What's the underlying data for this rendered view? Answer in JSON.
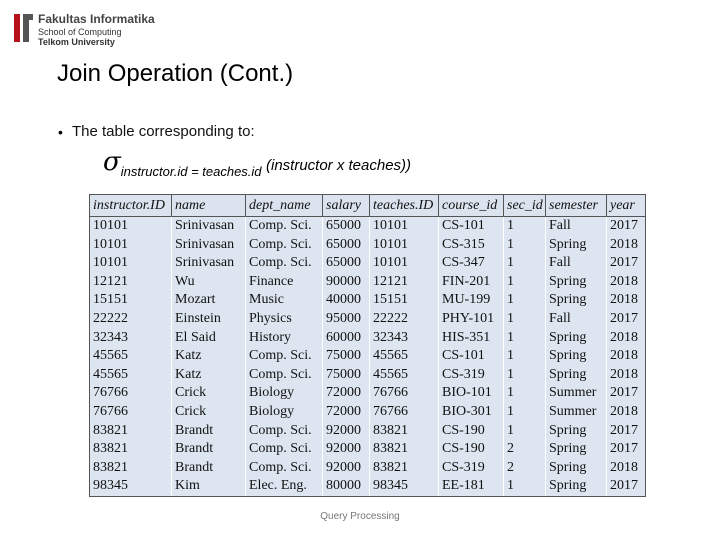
{
  "logo": {
    "name": "Fakultas Informatika",
    "line2": "School of Computing",
    "line3": "Telkom University"
  },
  "title": "Join Operation (Cont.)",
  "bullet": "The  table corresponding to:",
  "formula": {
    "sigma": "σ",
    "subscript": "instructor.id = teaches.id",
    "argument": "(instructor  x teaches))"
  },
  "table": {
    "header": [
      "instructor.ID",
      "name",
      "dept_name",
      "salary",
      "teaches.ID",
      "course_id",
      "sec_id",
      "semester",
      "year"
    ],
    "rows": [
      [
        "10101",
        "Srinivasan",
        "Comp. Sci.",
        "65000",
        "10101",
        "CS-101",
        "1",
        "Fall",
        "2017"
      ],
      [
        "10101",
        "Srinivasan",
        "Comp. Sci.",
        "65000",
        "10101",
        "CS-315",
        "1",
        "Spring",
        "2018"
      ],
      [
        "10101",
        "Srinivasan",
        "Comp. Sci.",
        "65000",
        "10101",
        "CS-347",
        "1",
        "Fall",
        "2017"
      ],
      [
        "12121",
        "Wu",
        "Finance",
        "90000",
        "12121",
        "FIN-201",
        "1",
        "Spring",
        "2018"
      ],
      [
        "15151",
        "Mozart",
        "Music",
        "40000",
        "15151",
        "MU-199",
        "1",
        "Spring",
        "2018"
      ],
      [
        "22222",
        "Einstein",
        "Physics",
        "95000",
        "22222",
        "PHY-101",
        "1",
        "Fall",
        "2017"
      ],
      [
        "32343",
        "El Said",
        "History",
        "60000",
        "32343",
        "HIS-351",
        "1",
        "Spring",
        "2018"
      ],
      [
        "45565",
        "Katz",
        "Comp. Sci.",
        "75000",
        "45565",
        "CS-101",
        "1",
        "Spring",
        "2018"
      ],
      [
        "45565",
        "Katz",
        "Comp. Sci.",
        "75000",
        "45565",
        "CS-319",
        "1",
        "Spring",
        "2018"
      ],
      [
        "76766",
        "Crick",
        "Biology",
        "72000",
        "76766",
        "BIO-101",
        "1",
        "Summer",
        "2017"
      ],
      [
        "76766",
        "Crick",
        "Biology",
        "72000",
        "76766",
        "BIO-301",
        "1",
        "Summer",
        "2018"
      ],
      [
        "83821",
        "Brandt",
        "Comp. Sci.",
        "92000",
        "83821",
        "CS-190",
        "1",
        "Spring",
        "2017"
      ],
      [
        "83821",
        "Brandt",
        "Comp. Sci.",
        "92000",
        "83821",
        "CS-190",
        "2",
        "Spring",
        "2017"
      ],
      [
        "83821",
        "Brandt",
        "Comp. Sci.",
        "92000",
        "83821",
        "CS-319",
        "2",
        "Spring",
        "2018"
      ],
      [
        "98345",
        "Kim",
        "Elec. Eng.",
        "80000",
        "98345",
        "EE-181",
        "1",
        "Spring",
        "2017"
      ]
    ]
  },
  "footer": "Query Processing"
}
